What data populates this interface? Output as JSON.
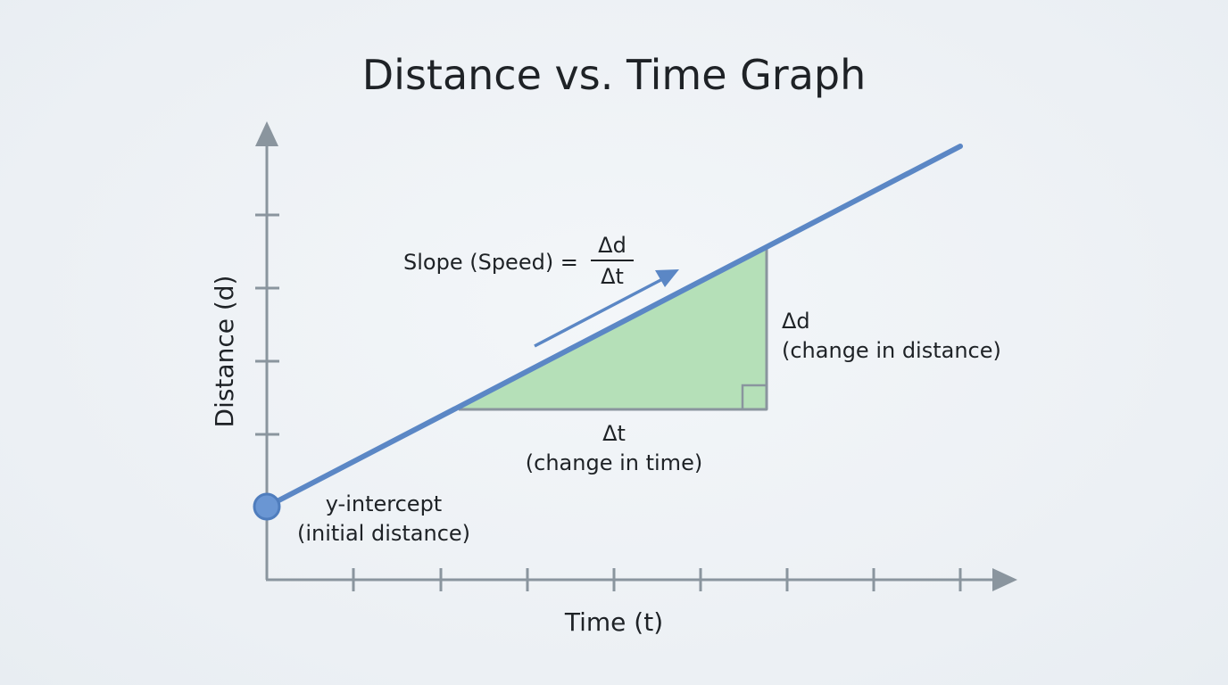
{
  "title": "Distance vs. Time Graph",
  "axes": {
    "x_label": "Time (t)",
    "y_label": "Distance (d)"
  },
  "slope": {
    "text": "Slope (Speed) =",
    "numerator": "Δd",
    "denominator": "Δt"
  },
  "delta_d": {
    "symbol": "Δd",
    "description": "(change in distance)"
  },
  "delta_t": {
    "symbol": "Δt",
    "description": "(change in time)"
  },
  "intercept": {
    "line1": "y-intercept",
    "line2": "(initial distance)"
  },
  "colors": {
    "axis": "#8a959e",
    "line": "#5b87c5",
    "triangle_fill": "#b5e0b8",
    "triangle_stroke": "#8a959e",
    "point": "#6a96d3",
    "text": "#1e2226"
  }
}
